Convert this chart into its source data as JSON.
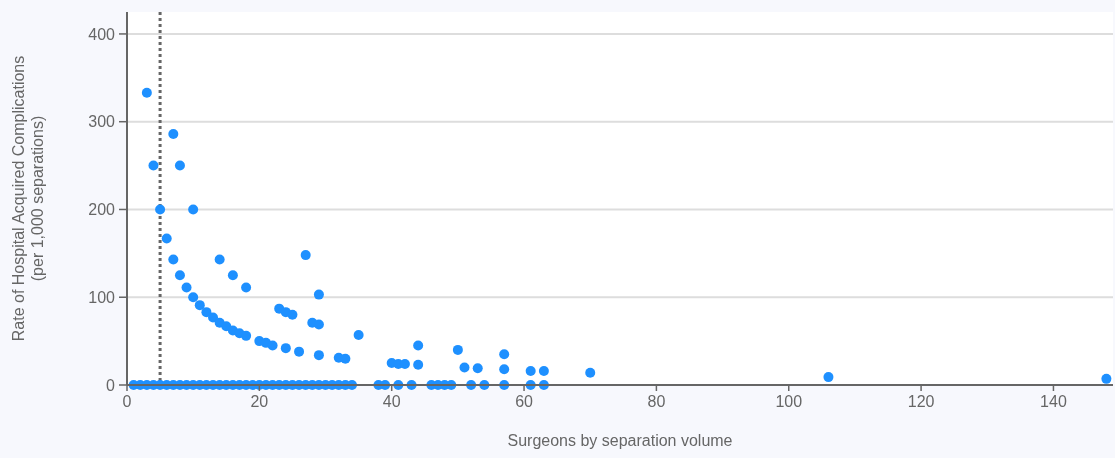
{
  "chart_data": {
    "type": "scatter",
    "xlabel": "Surgeons by separation volume",
    "ylabel": "Rate of Hospital Acquired Complications\n(per 1,000 separations)",
    "x": [
      1,
      2,
      3,
      4,
      5,
      6,
      7,
      8,
      9,
      10,
      11,
      12,
      13,
      14,
      15,
      16,
      17,
      18,
      19,
      20,
      21,
      22,
      23,
      24,
      25,
      26,
      27,
      28,
      29,
      30,
      31,
      32,
      33,
      34,
      38,
      39,
      41,
      43,
      46,
      47,
      48,
      49,
      52,
      54,
      57,
      61,
      63,
      3,
      4,
      5,
      6,
      7,
      7,
      8,
      8,
      9,
      10,
      10,
      11,
      12,
      13,
      14,
      14,
      15,
      16,
      16,
      17,
      18,
      18,
      20,
      21,
      22,
      23,
      24,
      24,
      25,
      26,
      27,
      28,
      29,
      29,
      29,
      32,
      33,
      35,
      40,
      41,
      42,
      44,
      44,
      50,
      51,
      53,
      57,
      57,
      61,
      63,
      70,
      106,
      148
    ],
    "values": [
      0,
      0,
      0,
      0,
      0,
      0,
      0,
      0,
      0,
      0,
      0,
      0,
      0,
      0,
      0,
      0,
      0,
      0,
      0,
      0,
      0,
      0,
      0,
      0,
      0,
      0,
      0,
      0,
      0,
      0,
      0,
      0,
      0,
      0,
      0,
      0,
      0,
      0,
      0,
      0,
      0,
      0,
      0,
      0,
      0,
      0,
      0,
      333,
      250,
      200,
      167,
      143,
      286,
      125,
      250,
      111,
      100,
      200,
      91,
      83,
      77,
      71,
      143,
      67,
      62,
      125,
      59,
      56,
      111,
      50,
      48,
      45,
      87,
      42,
      83,
      80,
      38,
      148,
      71,
      34,
      69,
      103,
      31,
      30,
      57,
      25,
      24,
      24,
      23,
      45,
      40,
      20,
      19,
      35,
      18,
      16,
      16,
      14,
      9,
      7
    ],
    "color": "#1e90ff",
    "marker": "circle",
    "xlim": [
      0,
      149
    ],
    "xticks": [
      0,
      20,
      40,
      60,
      80,
      100,
      120,
      140
    ],
    "ylim": [
      0,
      425
    ],
    "yticks": [
      0,
      100,
      200,
      300,
      400
    ],
    "grid": "y",
    "ref_lines": [
      {
        "axis": "x",
        "value": 5,
        "label": null,
        "color": "#666666",
        "line_style": "dotted"
      }
    ]
  }
}
